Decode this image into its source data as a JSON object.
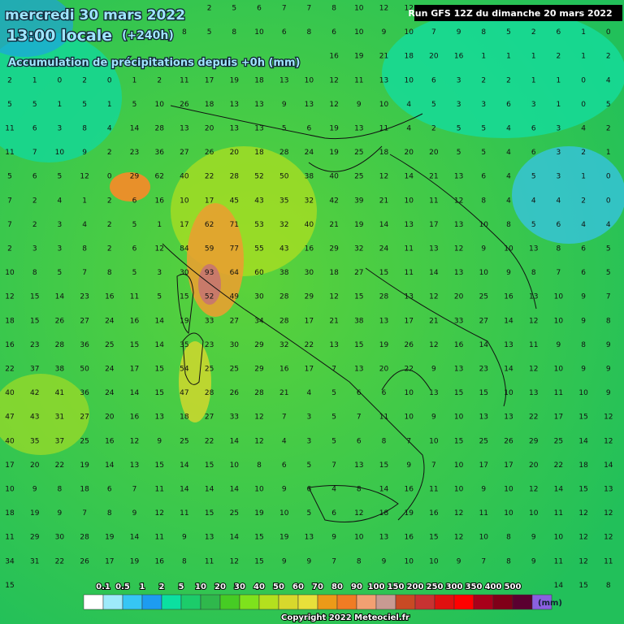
{
  "header": {
    "date": "mercredi 30 mars 2022",
    "time": "13:00 locale",
    "lead": "(+240h)",
    "subtitle": "Accumulation de précipitations depuis +0h (mm)",
    "run": "Run GFS 12Z du dimanche 20 mars 2022"
  },
  "grid": {
    "rows": [
      [
        null,
        null,
        null,
        null,
        null,
        null,
        null,
        null,
        2,
        5,
        6,
        7,
        7,
        8,
        10,
        12,
        12,
        11,
        10,
        null,
        null,
        null,
        null,
        null,
        null
      ],
      [
        null,
        null,
        null,
        null,
        null,
        null,
        null,
        8,
        5,
        8,
        10,
        6,
        8,
        6,
        10,
        9,
        10,
        7,
        9,
        8,
        5,
        2,
        6,
        1,
        0
      ],
      [
        null,
        null,
        null,
        null,
        null,
        null,
        null,
        null,
        null,
        null,
        null,
        null,
        null,
        16,
        19,
        21,
        18,
        20,
        16,
        1,
        1,
        1,
        2,
        1,
        2
      ],
      [
        2,
        1,
        0,
        2,
        0,
        1,
        2,
        11,
        17,
        19,
        18,
        13,
        10,
        12,
        11,
        13,
        10,
        6,
        3,
        2,
        2,
        1,
        1,
        0,
        4
      ],
      [
        5,
        5,
        1,
        5,
        1,
        5,
        10,
        26,
        18,
        13,
        13,
        9,
        13,
        12,
        9,
        10,
        4,
        5,
        3,
        3,
        6,
        3,
        1,
        0,
        5
      ],
      [
        11,
        6,
        3,
        8,
        4,
        14,
        28,
        13,
        20,
        13,
        13,
        5,
        6,
        19,
        13,
        11,
        4,
        2,
        5,
        5,
        4,
        6,
        3,
        4,
        2
      ],
      [
        11,
        7,
        10,
        9,
        2,
        23,
        36,
        27,
        26,
        20,
        18,
        28,
        24,
        19,
        25,
        18,
        20,
        20,
        5,
        5,
        4,
        6,
        3,
        2,
        1
      ],
      [
        5,
        6,
        5,
        12,
        0,
        29,
        62,
        40,
        22,
        28,
        52,
        50,
        38,
        40,
        25,
        12,
        14,
        21,
        13,
        6,
        4,
        5,
        3,
        1,
        0
      ],
      [
        7,
        2,
        4,
        1,
        2,
        6,
        16,
        10,
        17,
        45,
        43,
        35,
        32,
        42,
        39,
        21,
        10,
        11,
        12,
        8,
        4,
        4,
        4,
        2,
        0
      ],
      [
        7,
        2,
        3,
        4,
        2,
        5,
        1,
        17,
        62,
        71,
        53,
        32,
        40,
        21,
        19,
        14,
        13,
        17,
        13,
        10,
        8,
        5,
        6,
        4,
        4
      ],
      [
        2,
        3,
        3,
        8,
        2,
        6,
        12,
        84,
        59,
        77,
        55,
        43,
        16,
        29,
        32,
        24,
        11,
        13,
        12,
        9,
        10,
        13,
        8,
        6,
        5
      ],
      [
        10,
        8,
        5,
        7,
        8,
        5,
        3,
        30,
        93,
        64,
        60,
        38,
        30,
        18,
        27,
        15,
        11,
        14,
        13,
        10,
        9,
        8,
        7,
        6,
        5
      ],
      [
        12,
        15,
        14,
        23,
        16,
        11,
        5,
        15,
        52,
        49,
        30,
        28,
        29,
        12,
        15,
        28,
        13,
        12,
        20,
        25,
        16,
        13,
        10,
        9,
        7
      ],
      [
        18,
        15,
        26,
        27,
        24,
        16,
        14,
        19,
        33,
        27,
        34,
        28,
        17,
        21,
        38,
        13,
        17,
        21,
        33,
        27,
        14,
        12,
        10,
        9,
        8
      ],
      [
        16,
        23,
        28,
        36,
        25,
        15,
        14,
        35,
        23,
        30,
        29,
        32,
        22,
        13,
        15,
        19,
        26,
        12,
        16,
        14,
        13,
        11,
        9,
        8,
        9
      ],
      [
        22,
        37,
        38,
        50,
        24,
        17,
        15,
        54,
        25,
        25,
        29,
        16,
        17,
        7,
        13,
        20,
        22,
        9,
        13,
        23,
        14,
        12,
        10,
        9,
        9
      ],
      [
        40,
        42,
        41,
        36,
        24,
        14,
        15,
        47,
        28,
        26,
        28,
        21,
        4,
        5,
        6,
        6,
        10,
        13,
        15,
        15,
        10,
        13,
        11,
        10,
        9
      ],
      [
        47,
        43,
        31,
        27,
        20,
        16,
        13,
        18,
        27,
        33,
        12,
        7,
        3,
        5,
        7,
        11,
        10,
        9,
        10,
        13,
        13,
        22,
        17,
        15,
        12
      ],
      [
        40,
        35,
        37,
        25,
        16,
        12,
        9,
        25,
        22,
        14,
        12,
        4,
        3,
        5,
        6,
        8,
        7,
        10,
        15,
        25,
        26,
        29,
        25,
        14,
        12
      ],
      [
        17,
        20,
        22,
        19,
        14,
        13,
        15,
        14,
        15,
        10,
        8,
        6,
        5,
        7,
        13,
        15,
        9,
        7,
        10,
        17,
        17,
        20,
        22,
        18,
        14
      ],
      [
        10,
        9,
        8,
        18,
        6,
        7,
        11,
        14,
        14,
        14,
        10,
        9,
        6,
        4,
        8,
        14,
        16,
        11,
        10,
        9,
        10,
        12,
        14,
        15,
        13
      ],
      [
        18,
        19,
        9,
        7,
        8,
        9,
        12,
        11,
        15,
        25,
        19,
        10,
        5,
        6,
        12,
        18,
        19,
        16,
        12,
        11,
        10,
        10,
        11,
        12,
        12
      ],
      [
        11,
        29,
        30,
        28,
        19,
        14,
        11,
        9,
        13,
        14,
        15,
        19,
        13,
        9,
        10,
        13,
        16,
        15,
        12,
        10,
        8,
        9,
        10,
        12,
        12
      ],
      [
        34,
        31,
        22,
        26,
        17,
        19,
        16,
        8,
        11,
        12,
        15,
        9,
        9,
        7,
        8,
        9,
        10,
        10,
        9,
        7,
        8,
        9,
        11,
        12,
        11
      ],
      [
        15,
        null,
        null,
        null,
        null,
        null,
        null,
        null,
        null,
        null,
        null,
        null,
        null,
        null,
        null,
        null,
        null,
        null,
        null,
        null,
        null,
        null,
        14,
        15,
        8
      ]
    ]
  },
  "legend": {
    "labels": [
      "0.1",
      "0.5",
      "1",
      "2",
      "5",
      "10",
      "20",
      "30",
      "40",
      "50",
      "60",
      "70",
      "80",
      "90",
      "100",
      "150",
      "200",
      "250",
      "300",
      "350",
      "400",
      "500"
    ],
    "colors": [
      "#ffffff",
      "#9eeafa",
      "#36c6f4",
      "#1d9cf0",
      "#0be0a0",
      "#1ccc6a",
      "#2fb84c",
      "#46cc24",
      "#7ee21c",
      "#b4e01e",
      "#d8d82c",
      "#e8e03a",
      "#ec9a18",
      "#f07c24",
      "#f2a072",
      "#c89a92",
      "#c84a24",
      "#c83232",
      "#e01010",
      "#ff0000",
      "#a8001a",
      "#800018",
      "#5a0030",
      "#8a60e0"
    ],
    "unit": "(mm)"
  },
  "footer": {
    "copyright": "Copyright 2022 Meteociel.fr"
  }
}
